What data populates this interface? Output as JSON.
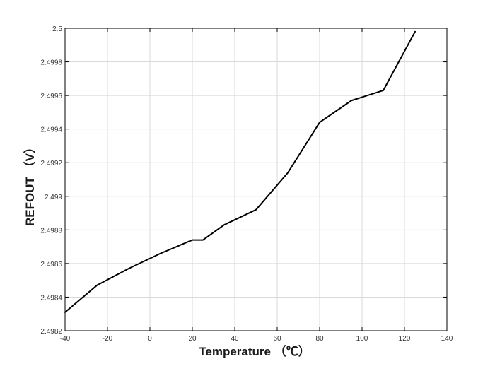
{
  "chart_data": {
    "type": "line",
    "title": "",
    "xlabel": "Temperature （℃）",
    "ylabel": "REFOUT （V）",
    "xlim": [
      -40,
      140
    ],
    "ylim": [
      2.4982,
      2.5
    ],
    "x_ticks": [
      -40,
      -20,
      0,
      20,
      40,
      60,
      80,
      100,
      120,
      140
    ],
    "y_ticks": [
      2.4982,
      2.4984,
      2.4986,
      2.4988,
      2.499,
      2.4992,
      2.4994,
      2.4996,
      2.4998,
      2.5
    ],
    "x_tick_labels": [
      "-40",
      "-20",
      "0",
      "20",
      "40",
      "60",
      "80",
      "100",
      "120",
      "140"
    ],
    "y_tick_labels": [
      "2.4982",
      "2.4984",
      "2.4986",
      "2.4988",
      "2.499",
      "2.4992",
      "2.4994",
      "2.4996",
      "2.4998",
      "2.5"
    ],
    "grid": true,
    "series": [
      {
        "color": "#000000",
        "x": [
          -40,
          -25,
          -10,
          5,
          20,
          25,
          35,
          50,
          65,
          80,
          95,
          110,
          125
        ],
        "y": [
          2.49831,
          2.49847,
          2.49857,
          2.49866,
          2.49874,
          2.49874,
          2.49883,
          2.49892,
          2.49914,
          2.49944,
          2.49957,
          2.49963,
          2.49998
        ]
      }
    ]
  }
}
